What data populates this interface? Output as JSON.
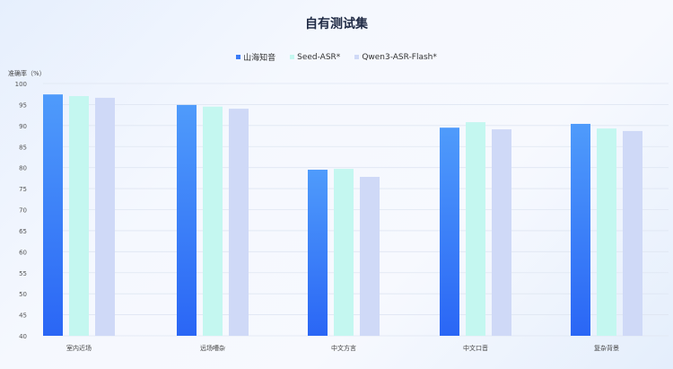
{
  "chart_data": {
    "type": "bar",
    "title": "自有测试集",
    "ylabel": "准确率（%）",
    "xlabel": "",
    "ylim": [
      40,
      100
    ],
    "yticks": [
      40,
      45,
      50,
      55,
      60,
      65,
      70,
      75,
      80,
      85,
      90,
      95,
      100
    ],
    "grid": true,
    "legend_position": "top",
    "categories": [
      "室内近场",
      "远场嘈杂",
      "中文方言",
      "中文口音",
      "复杂背景"
    ],
    "series": [
      {
        "name": "山海知音",
        "color": "#3a7bf7",
        "values": [
          97.4,
          94.9,
          79.5,
          89.5,
          90.4
        ]
      },
      {
        "name": "Seed-ASR*",
        "color": "#c4f7f0",
        "values": [
          97.0,
          94.5,
          79.7,
          90.8,
          89.3
        ]
      },
      {
        "name": "Qwen3-ASR-Flash*",
        "color": "#cfd9f7",
        "values": [
          96.6,
          94.0,
          77.8,
          89.1,
          88.7
        ]
      }
    ]
  }
}
